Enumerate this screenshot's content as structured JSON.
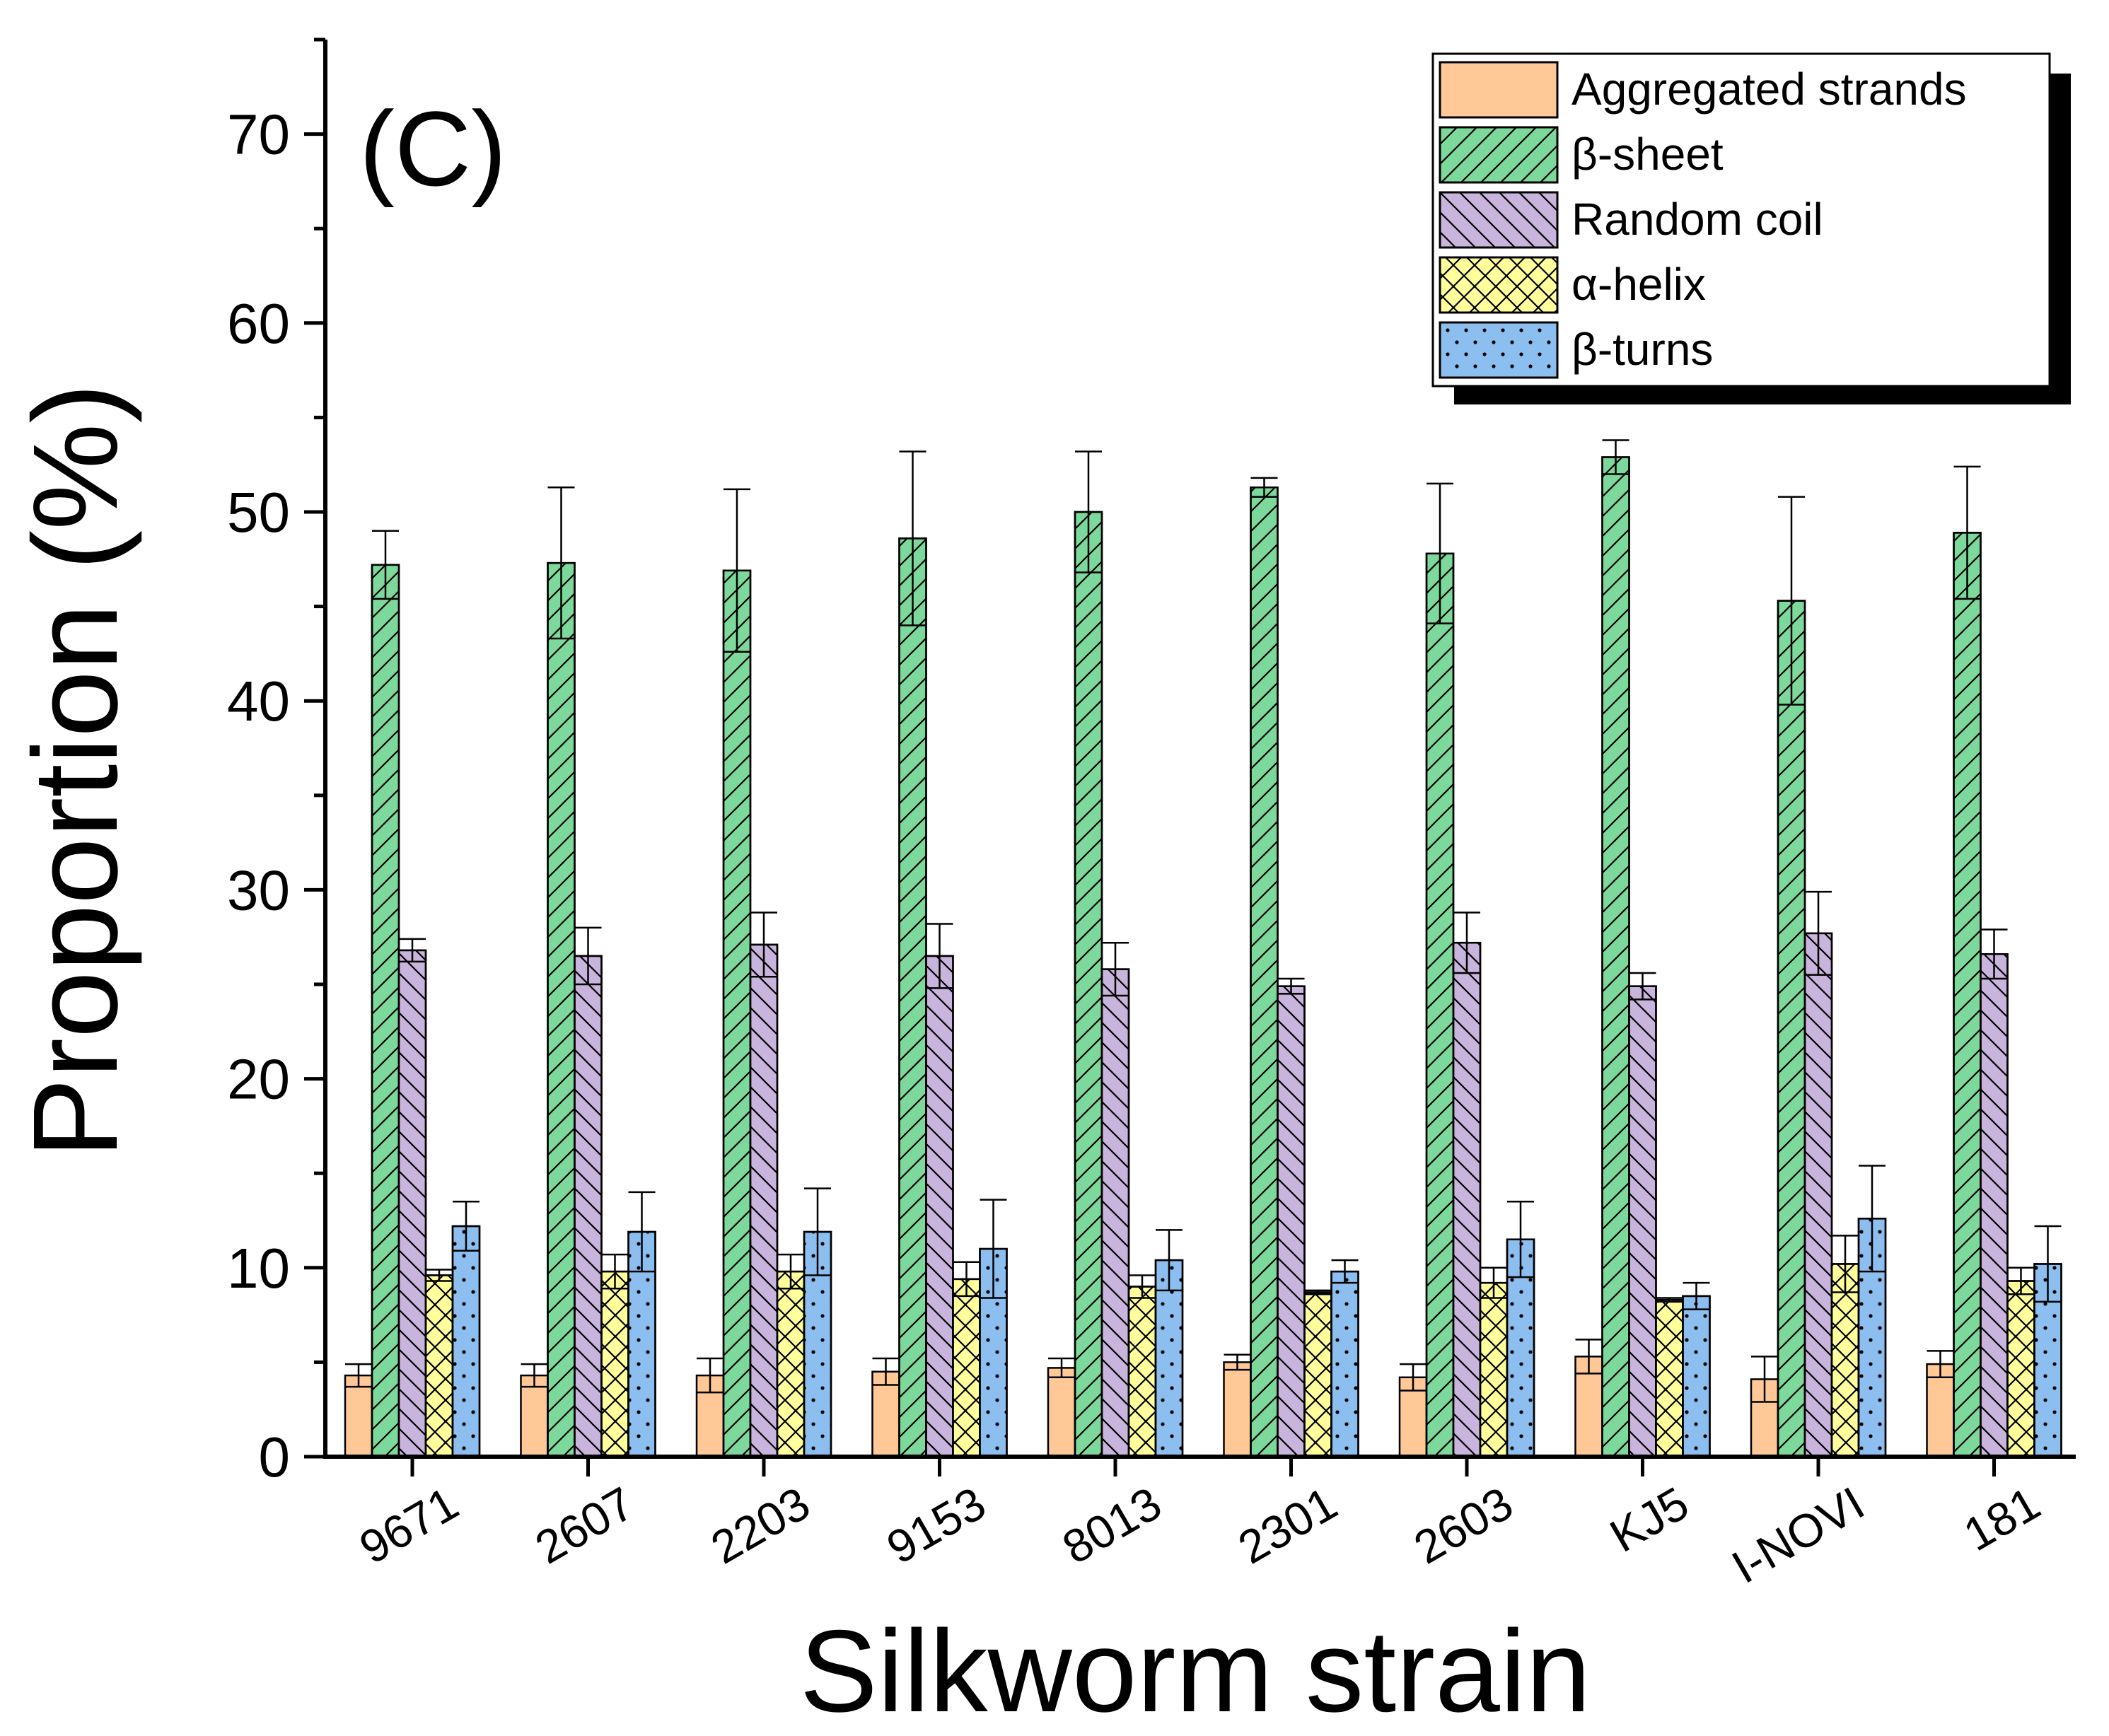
{
  "chart_data": {
    "type": "bar",
    "panel_label": "(C)",
    "xlabel": "Silkworm strain",
    "ylabel": "Proportion (%)",
    "ylim": [
      0,
      75
    ],
    "yticks": [
      0,
      10,
      20,
      30,
      40,
      50,
      60,
      70
    ],
    "legend_position": "top-right",
    "categories": [
      "9671",
      "2607",
      "2203",
      "9153",
      "8013",
      "2301",
      "2603",
      "KJ5",
      "I-NOVI",
      "181"
    ],
    "series": [
      {
        "name": "Aggregated strands",
        "color": "#FFC896",
        "pattern": "none",
        "values": [
          4.3,
          4.3,
          4.3,
          4.5,
          4.7,
          5.0,
          4.2,
          5.3,
          4.1,
          4.9
        ],
        "errors": [
          0.6,
          0.6,
          0.9,
          0.7,
          0.5,
          0.4,
          0.7,
          0.9,
          1.2,
          0.7
        ]
      },
      {
        "name": "β-sheet",
        "color": "#7DD89B",
        "pattern": "forward-diagonal",
        "values": [
          47.2,
          47.3,
          46.9,
          48.6,
          50.0,
          51.3,
          47.8,
          52.9,
          45.3,
          48.9
        ],
        "errors": [
          1.8,
          4.0,
          4.3,
          4.6,
          3.2,
          0.5,
          3.7,
          0.9,
          5.5,
          3.5
        ]
      },
      {
        "name": "Random coil",
        "color": "#C8B4DC",
        "pattern": "back-diagonal",
        "values": [
          26.8,
          26.5,
          27.1,
          26.5,
          25.8,
          24.9,
          27.2,
          24.9,
          27.7,
          26.6
        ],
        "errors": [
          0.6,
          1.5,
          1.7,
          1.7,
          1.4,
          0.4,
          1.6,
          0.7,
          2.2,
          1.3
        ]
      },
      {
        "name": "α-helix",
        "color": "#FFFF9B",
        "pattern": "cross",
        "values": [
          9.6,
          9.8,
          9.8,
          9.4,
          9.0,
          8.7,
          9.2,
          8.3,
          10.2,
          9.3
        ],
        "errors": [
          0.3,
          0.9,
          0.9,
          0.9,
          0.6,
          0.1,
          0.8,
          0.1,
          1.5,
          0.7
        ]
      },
      {
        "name": "β-turns",
        "color": "#8CBEF0",
        "pattern": "dots",
        "values": [
          12.2,
          11.9,
          11.9,
          11.0,
          10.4,
          9.8,
          11.5,
          8.5,
          12.6,
          10.2
        ],
        "errors": [
          1.3,
          2.1,
          2.3,
          2.6,
          1.6,
          0.6,
          2.0,
          0.7,
          2.8,
          2.0
        ]
      }
    ]
  }
}
